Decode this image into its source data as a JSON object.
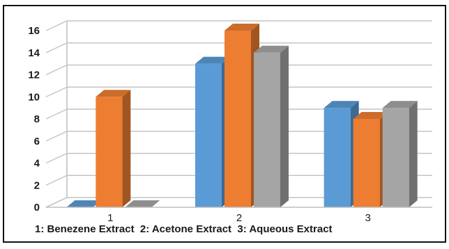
{
  "chart_data": {
    "type": "bar",
    "style": "3d-clustered-column",
    "categories": [
      "1",
      "2",
      "3"
    ],
    "series": [
      {
        "values": [
          0,
          13,
          9
        ],
        "color": "#5b9bd5"
      },
      {
        "values": [
          10,
          16,
          8
        ],
        "color": "#ed7d31"
      },
      {
        "values": [
          0,
          14,
          9
        ],
        "color": "#a5a5a5"
      }
    ],
    "ylim": [
      0,
      16
    ],
    "yticks": [
      "0",
      "2",
      "4",
      "6",
      "8",
      "10",
      "12",
      "14",
      "16"
    ],
    "grid": true,
    "legend": "none",
    "footnote": "1: Benezene Extract  2: Acetone Extract  3: Aqueous Extract"
  }
}
